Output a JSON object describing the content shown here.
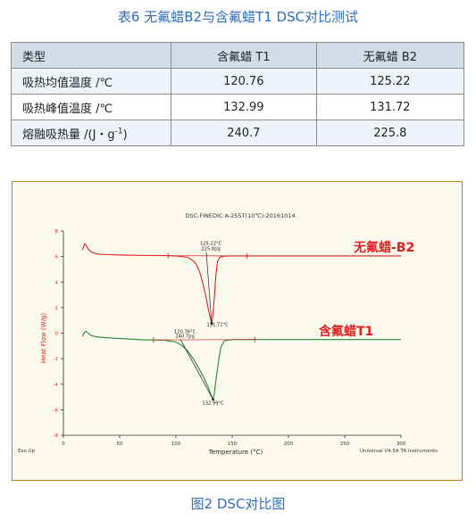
{
  "table": {
    "caption": "表6 无氟蜡B2与含氟蜡T1 DSC对比测试",
    "headers": [
      "类型",
      "含氟蜡 T1",
      "无氟蜡 B2"
    ],
    "rows": [
      {
        "label": "吸热均值温度 /℃",
        "t1": "120.76",
        "b2": "125.22"
      },
      {
        "label": "吸热峰值温度 /℃",
        "t1": "132.99",
        "b2": "131.72"
      },
      {
        "label": "熔融吸热量 /(J・g",
        "label_sup": "-1",
        "label_end": ")",
        "t1": "240.7",
        "b2": "225.8"
      }
    ]
  },
  "figure": {
    "caption": "图2 DSC对比图",
    "chart_data": {
      "type": "line",
      "title": "DSC-FINEDIC A-255T(10℃)-20161014",
      "xlabel": "Temperature (°C)",
      "ylabel": "Heat Flow (W/g)",
      "xlim": [
        0,
        300
      ],
      "ylim": [
        -8,
        8
      ],
      "xticks": [
        0,
        50,
        100,
        150,
        200,
        250,
        300
      ],
      "yticks": [
        -8,
        -6,
        -4,
        -2,
        0,
        2,
        4,
        6,
        8
      ],
      "footer_left": "Exo Up",
      "footer_right": "Universal V4.5A TA Instruments",
      "series": [
        {
          "name": "无氟蜡-B2",
          "color": "#e02020",
          "points": [
            [
              17,
              6.5
            ],
            [
              18,
              6.8
            ],
            [
              19,
              7.0
            ],
            [
              20,
              6.9
            ],
            [
              22,
              6.6
            ],
            [
              25,
              6.35
            ],
            [
              30,
              6.2
            ],
            [
              40,
              6.15
            ],
            [
              60,
              6.1
            ],
            [
              80,
              6.08
            ],
            [
              90,
              6.07
            ],
            [
              100,
              6.05
            ],
            [
              110,
              5.95
            ],
            [
              115,
              5.7
            ],
            [
              118,
              5.4
            ],
            [
              121,
              4.8
            ],
            [
              124,
              3.9
            ],
            [
              127,
              2.7
            ],
            [
              129,
              1.8
            ],
            [
              131,
              1.0
            ],
            [
              131.72,
              0.75
            ],
            [
              132.5,
              1.1
            ],
            [
              134,
              2.6
            ],
            [
              135.5,
              4.5
            ],
            [
              137,
              5.6
            ],
            [
              139,
              5.95
            ],
            [
              143,
              6.03
            ],
            [
              150,
              6.05
            ],
            [
              200,
              6.05
            ],
            [
              300,
              6.05
            ]
          ],
          "annotations": [
            {
              "text": "125.22°C",
              "x": 131,
              "y": 6.9
            },
            {
              "text": "225.8J/g",
              "x": 131,
              "y": 6.5
            },
            {
              "text": "131.72°C",
              "x": 137,
              "y": 0.55
            }
          ],
          "baseline_range": [
            93,
            163
          ],
          "peak": [
            131.72,
            0.75
          ]
        },
        {
          "name": "含氟蜡T1",
          "color": "#1f8a3a",
          "points": [
            [
              17,
              -0.25
            ],
            [
              18,
              -0.05
            ],
            [
              19,
              0.1
            ],
            [
              20,
              0.15
            ],
            [
              22,
              0.0
            ],
            [
              25,
              -0.2
            ],
            [
              30,
              -0.3
            ],
            [
              45,
              -0.4
            ],
            [
              70,
              -0.52
            ],
            [
              90,
              -0.55
            ],
            [
              100,
              -0.7
            ],
            [
              105,
              -0.95
            ],
            [
              110,
              -1.35
            ],
            [
              115,
              -1.95
            ],
            [
              120,
              -2.7
            ],
            [
              125,
              -3.5
            ],
            [
              129,
              -4.3
            ],
            [
              131,
              -4.8
            ],
            [
              132.99,
              -5.2
            ],
            [
              134,
              -4.8
            ],
            [
              136,
              -3.4
            ],
            [
              138,
              -2.1
            ],
            [
              140,
              -1.1
            ],
            [
              143,
              -0.6
            ],
            [
              150,
              -0.5
            ],
            [
              200,
              -0.5
            ],
            [
              300,
              -0.5
            ]
          ],
          "annotations": [
            {
              "text": "120.76°C",
              "x": 108,
              "y": 0.0
            },
            {
              "text": "240.7J/g",
              "x": 108,
              "y": -0.35
            },
            {
              "text": "132.99°C",
              "x": 133,
              "y": -5.6
            }
          ],
          "baseline_range": [
            80,
            170
          ],
          "peak": [
            132.99,
            -5.2
          ]
        }
      ]
    }
  }
}
